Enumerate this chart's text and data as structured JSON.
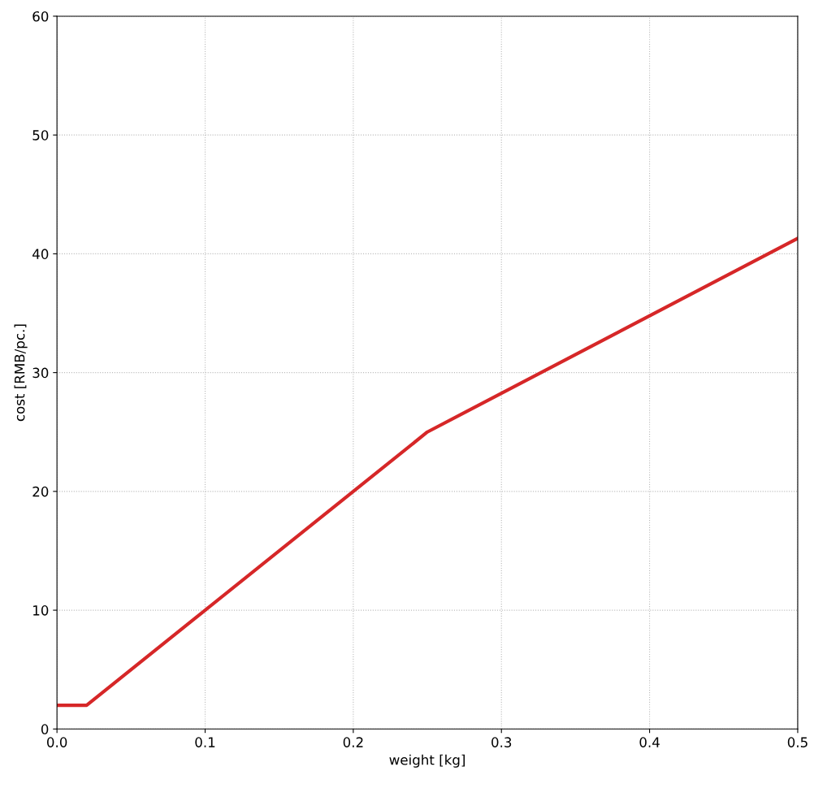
{
  "chart_data": {
    "type": "line",
    "xlabel": "weight [kg]",
    "ylabel": "cost [RMB/pc.]",
    "x": [
      0.0,
      0.02,
      0.1,
      0.2,
      0.25,
      0.5
    ],
    "series": [
      {
        "color": "#d62728",
        "values": [
          2,
          2,
          10,
          20,
          25,
          41.3
        ]
      }
    ],
    "xlim": [
      0.0,
      0.5
    ],
    "xticks": [
      {
        "value": 0,
        "label": "0.0"
      },
      0.1,
      0.2,
      0.3,
      0.4,
      0.5
    ],
    "ylim": [
      0,
      60
    ],
    "yticks": [
      0,
      10,
      20,
      30,
      40,
      50,
      60
    ],
    "grid": true,
    "line_style": "solid",
    "marker": "none"
  }
}
